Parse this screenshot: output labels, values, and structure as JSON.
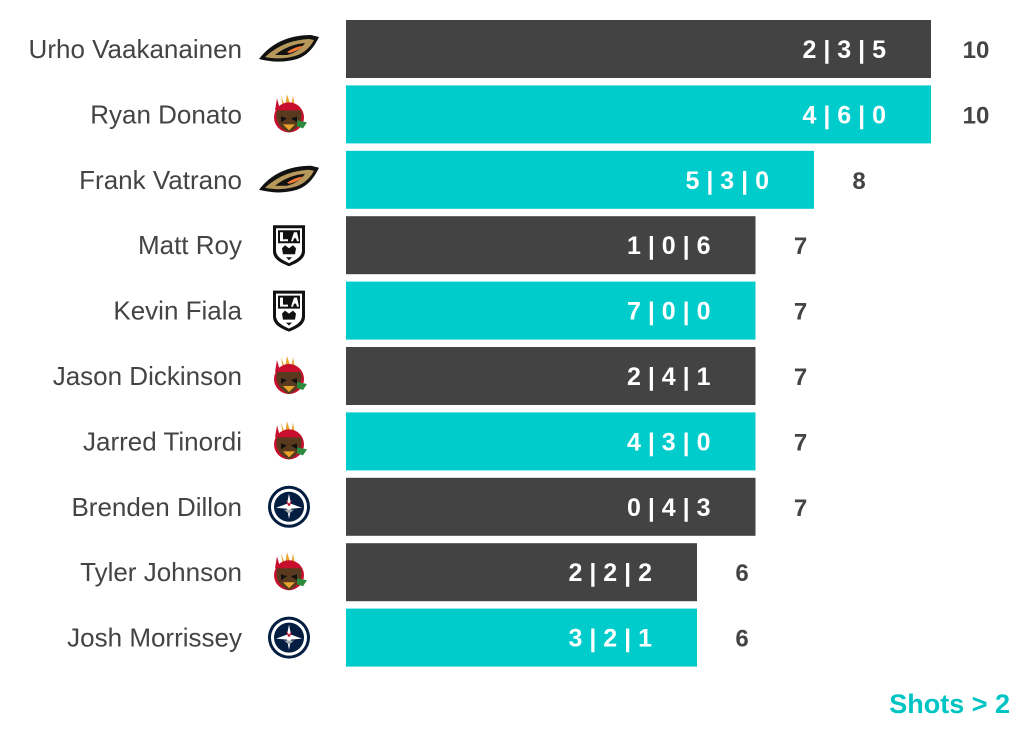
{
  "chart_data": {
    "type": "bar",
    "orientation": "horizontal",
    "categories": [
      "Urho Vaakanainen",
      "Ryan Donato",
      "Frank Vatrano",
      "Matt Roy",
      "Kevin Fiala",
      "Jason Dickinson",
      "Jarred Tinordi",
      "Brenden Dillon",
      "Tyler Johnson",
      "Josh Morrissey"
    ],
    "teams": [
      "ducks-icon",
      "blackhawks-icon",
      "ducks-icon",
      "kings-icon",
      "kings-icon",
      "blackhawks-icon",
      "blackhawks-icon",
      "jets-icon",
      "blackhawks-icon",
      "jets-icon"
    ],
    "values": [
      10,
      10,
      8,
      7,
      7,
      7,
      7,
      7,
      6,
      6
    ],
    "breakdown_labels": [
      "2 | 3 | 5",
      "4 | 6 | 0",
      "5 | 3 | 0",
      "1 | 0 | 6",
      "7 | 0 | 0",
      "2 | 4 | 1",
      "4 | 3 | 0",
      "0 | 4 | 3",
      "2 | 2 | 2",
      "3 | 2 | 1"
    ],
    "bar_colors": [
      "#434343",
      "#00cccc",
      "#00cccc",
      "#434343",
      "#00cccc",
      "#434343",
      "#00cccc",
      "#434343",
      "#434343",
      "#00cccc"
    ],
    "xlim": [
      0,
      10
    ],
    "grid": false,
    "legend": "none"
  },
  "footnote": {
    "text": "Shots > 2",
    "color": "#00c4c4"
  }
}
